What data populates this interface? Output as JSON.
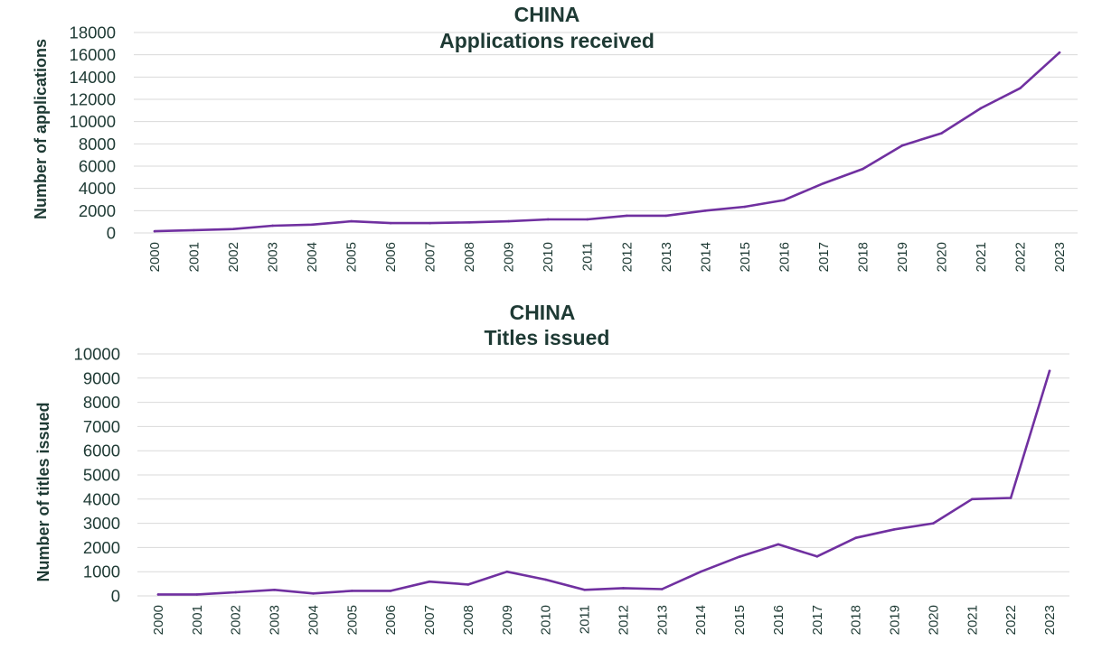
{
  "chart_data": [
    {
      "type": "line",
      "title": "CHINA",
      "subtitle": "Applications received",
      "xlabel": "",
      "ylabel": "Number of applications",
      "categories": [
        "2000",
        "2001",
        "2002",
        "2003",
        "2004",
        "2005",
        "2006",
        "2007",
        "2008",
        "2009",
        "2010",
        "2011",
        "2012",
        "2013",
        "2014",
        "2015",
        "2016",
        "2017",
        "2018",
        "2019",
        "2020",
        "2021",
        "2022",
        "2023"
      ],
      "series": [
        {
          "values": [
            150,
            250,
            350,
            650,
            750,
            1050,
            880,
            880,
            950,
            1050,
            1220,
            1220,
            1550,
            1550,
            2000,
            2350,
            2950,
            4450,
            5750,
            7850,
            8950,
            11200,
            13000,
            16200
          ]
        }
      ],
      "ylim": [
        0,
        18000
      ],
      "yticks": [
        "0",
        "2000",
        "4000",
        "6000",
        "8000",
        "10000",
        "12000",
        "14000",
        "16000",
        "18000"
      ],
      "grid": true,
      "color": "#7030a0"
    },
    {
      "type": "line",
      "title": "CHINA",
      "subtitle": "Titles issued",
      "xlabel": "",
      "ylabel": "Number of titles issued",
      "categories": [
        "2000",
        "2001",
        "2002",
        "2003",
        "2004",
        "2005",
        "2006",
        "2007",
        "2008",
        "2009",
        "2010",
        "2011",
        "2012",
        "2013",
        "2014",
        "2015",
        "2016",
        "2017",
        "2018",
        "2019",
        "2020",
        "2021",
        "2022",
        "2023"
      ],
      "series": [
        {
          "values": [
            60,
            60,
            150,
            250,
            100,
            210,
            210,
            590,
            470,
            1000,
            670,
            250,
            320,
            280,
            1000,
            1620,
            2130,
            1630,
            2400,
            2750,
            3000,
            4000,
            4050,
            9300
          ]
        }
      ],
      "ylim": [
        0,
        10000
      ],
      "yticks": [
        "0",
        "1000",
        "2000",
        "3000",
        "4000",
        "5000",
        "6000",
        "7000",
        "8000",
        "9000",
        "10000"
      ],
      "grid": true,
      "color": "#7030a0"
    }
  ]
}
